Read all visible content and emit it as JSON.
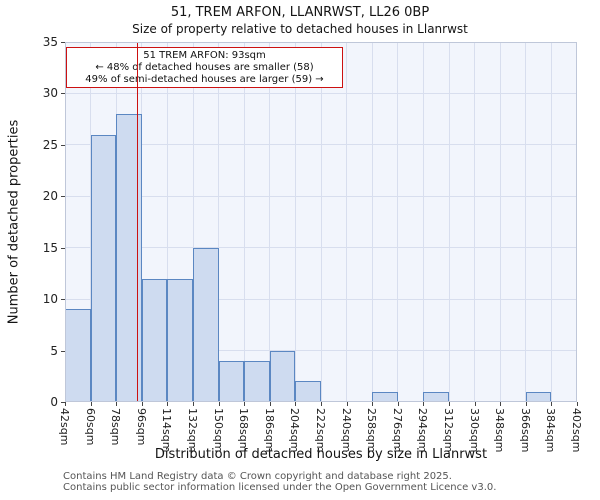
{
  "title": {
    "line1": "51, TREM ARFON, LLANRWST, LL26 0BP",
    "line2": "Size of property relative to detached houses in Llanrwst"
  },
  "annotation": {
    "line1": "51 TREM ARFON: 93sqm",
    "line2": "← 48% of detached houses are smaller (58)",
    "line3": "49% of semi-detached houses are larger (59) →"
  },
  "footer": {
    "line1": "Contains HM Land Registry data © Crown copyright and database right 2025.",
    "line2": "Contains public sector information licensed under the Open Government Licence v3.0."
  },
  "chart_data": {
    "type": "bar",
    "title": "51, TREM ARFON, LLANRWST, LL26 0BP — Size of property relative to detached houses in Llanrwst",
    "xlabel": "Distribution of detached houses by size in Llanrwst",
    "ylabel": "Number of detached properties",
    "bin_edges": [
      42,
      60,
      78,
      96,
      114,
      132,
      150,
      168,
      186,
      204,
      222,
      240,
      258,
      276,
      294,
      312,
      330,
      348,
      366,
      384,
      402
    ],
    "x_tick_labels": [
      "42sqm",
      "60sqm",
      "78sqm",
      "96sqm",
      "114sqm",
      "132sqm",
      "150sqm",
      "168sqm",
      "186sqm",
      "204sqm",
      "222sqm",
      "240sqm",
      "258sqm",
      "276sqm",
      "294sqm",
      "312sqm",
      "330sqm",
      "348sqm",
      "366sqm",
      "384sqm",
      "402sqm"
    ],
    "values": [
      9,
      26,
      28,
      12,
      12,
      15,
      4,
      4,
      5,
      2,
      0,
      0,
      1,
      0,
      1,
      0,
      0,
      0,
      1,
      0
    ],
    "ylim": [
      0,
      35
    ],
    "ytick_step": 5,
    "grid": true,
    "legend": "none",
    "marker": {
      "value": 93,
      "label": "51 TREM ARFON: 93sqm"
    },
    "colors": {
      "bar_fill": "#cedbf0",
      "bar_edge": "#5b87c2",
      "marker": "#cc1111",
      "plot_bg": "#f2f5fc",
      "grid": "#d8deee"
    }
  }
}
